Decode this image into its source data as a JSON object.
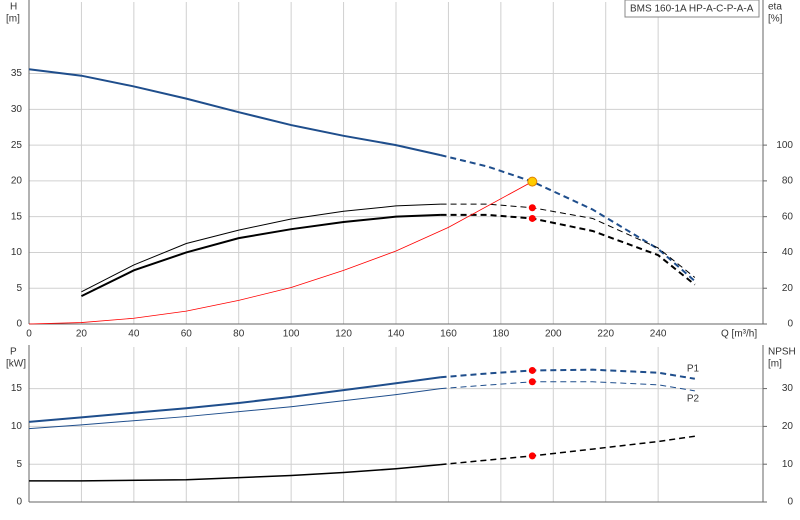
{
  "chart_data": [
    {
      "type": "line",
      "legend_box": "BMS 160-1A HP-A-C-P-A-A",
      "y_label": "H",
      "y_unit": "[m]",
      "y2_label": "eta",
      "y2_unit": "[%]",
      "x_label": "Q [m³/h]",
      "xlim": [
        0,
        280
      ],
      "xticks": [
        0,
        20,
        40,
        60,
        80,
        100,
        120,
        140,
        160,
        180,
        200,
        220,
        240
      ],
      "xtick_labels": true,
      "ylim": [
        0,
        45
      ],
      "yticks": [
        0,
        5,
        10,
        15,
        20,
        25,
        30,
        35
      ],
      "y2lim": [
        0,
        180
      ],
      "y2ticks": [
        0,
        20,
        40,
        60,
        80,
        100
      ],
      "grid": true,
      "series": [
        {
          "color": "#1f4e8c",
          "style": "solid",
          "width": 2,
          "x": [
            0,
            20,
            40,
            60,
            80,
            100,
            120,
            140,
            157
          ],
          "values": [
            35.6,
            34.7,
            33.2,
            31.5,
            29.6,
            27.8,
            26.3,
            25.0,
            23.6
          ]
        },
        {
          "color": "#1f4e8c",
          "style": "dashed",
          "width": 2,
          "x": [
            157,
            175,
            192,
            215,
            240,
            254
          ],
          "values": [
            23.6,
            22.0,
            19.9,
            16.0,
            10.5,
            6.0
          ]
        },
        {
          "color": "#000000",
          "style": "solid",
          "width": 1,
          "axis": "y2",
          "x": [
            20,
            40,
            60,
            80,
            100,
            120,
            140,
            157
          ],
          "values": [
            18,
            33,
            45,
            52.5,
            58.7,
            63,
            66,
            67
          ]
        },
        {
          "color": "#000000",
          "style": "dashed",
          "width": 1,
          "axis": "y2",
          "x": [
            157,
            175,
            192,
            215,
            240,
            254
          ],
          "values": [
            67,
            67,
            65,
            59,
            42.5,
            26
          ]
        },
        {
          "color": "#000000",
          "style": "solid",
          "width": 2,
          "axis": "y2",
          "x": [
            20,
            40,
            60,
            80,
            100,
            120,
            140,
            157
          ],
          "values": [
            15.6,
            30,
            40,
            48,
            53,
            57,
            60,
            61
          ]
        },
        {
          "color": "#000000",
          "style": "dashed",
          "width": 2,
          "axis": "y2",
          "x": [
            157,
            175,
            192,
            215,
            240,
            254
          ],
          "values": [
            61,
            61,
            59,
            52,
            38.5,
            22
          ]
        },
        {
          "color": "#ff0000",
          "style": "solid",
          "width": 0.8,
          "x": [
            0,
            20,
            40,
            60,
            80,
            100,
            120,
            140,
            160,
            192
          ],
          "values": [
            0,
            0.2,
            0.8,
            1.8,
            3.3,
            5.1,
            7.5,
            10.2,
            13.5,
            19.9
          ]
        },
        {
          "color": "#ff0000",
          "style": "marker",
          "axis": "y2",
          "x": [
            192,
            192
          ],
          "values": [
            65,
            59
          ]
        },
        {
          "color": "#ffcc00",
          "style": "marker",
          "x": [
            192
          ],
          "values": [
            19.9
          ]
        }
      ]
    },
    {
      "type": "line",
      "y_label": "P",
      "y_unit": "[kW]",
      "y2_label": "NPSH",
      "y2_unit": "[m]",
      "xlim": [
        0,
        280
      ],
      "xticks": [
        0,
        20,
        40,
        60,
        80,
        100,
        120,
        140,
        160,
        180,
        200,
        220,
        240
      ],
      "xtick_labels": false,
      "ylim": [
        0,
        20.5
      ],
      "yticks": [
        0,
        5,
        10,
        15
      ],
      "y2lim": [
        0,
        41
      ],
      "y2ticks": [
        0,
        10,
        20,
        30
      ],
      "grid": true,
      "series": [
        {
          "color": "#1f4e8c",
          "style": "solid",
          "width": 2,
          "x": [
            0,
            20,
            40,
            60,
            80,
            100,
            120,
            140,
            157
          ],
          "values": [
            10.6,
            11.2,
            11.8,
            12.4,
            13.1,
            13.9,
            14.8,
            15.7,
            16.5
          ]
        },
        {
          "name": "P1",
          "color": "#1f4e8c",
          "style": "dashed",
          "width": 2,
          "x": [
            157,
            175,
            192,
            215,
            240,
            254
          ],
          "values": [
            16.5,
            17.0,
            17.4,
            17.5,
            17.1,
            16.3
          ]
        },
        {
          "color": "#1f4e8c",
          "style": "solid",
          "width": 1,
          "x": [
            0,
            20,
            60,
            100,
            140,
            157
          ],
          "values": [
            9.7,
            10.2,
            11.3,
            12.6,
            14.2,
            15.0
          ]
        },
        {
          "name": "P2",
          "color": "#1f4e8c",
          "style": "dashed",
          "width": 1,
          "x": [
            157,
            192,
            215,
            240,
            254
          ],
          "values": [
            15.0,
            15.9,
            15.9,
            15.5,
            14.7
          ]
        },
        {
          "color": "#000000",
          "style": "solid",
          "width": 1.5,
          "axis": "y2",
          "x": [
            0,
            20,
            60,
            100,
            120,
            140,
            157
          ],
          "values": [
            5.6,
            5.6,
            5.9,
            7.0,
            7.8,
            8.8,
            9.9
          ]
        },
        {
          "color": "#000000",
          "style": "dashed",
          "width": 1.5,
          "axis": "y2",
          "x": [
            157,
            192,
            215,
            240,
            254
          ],
          "values": [
            9.9,
            12.2,
            14,
            16,
            17.4
          ]
        },
        {
          "color": "#ff0000",
          "style": "marker",
          "x": [
            192,
            192
          ],
          "values": [
            17.4,
            15.9
          ]
        },
        {
          "color": "#ff0000",
          "style": "marker",
          "axis": "y2",
          "x": [
            192
          ],
          "values": [
            12.2
          ]
        }
      ]
    }
  ]
}
